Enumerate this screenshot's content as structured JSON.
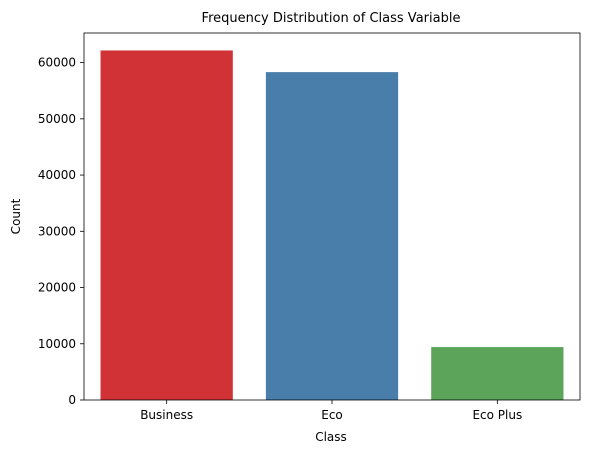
{
  "chart_data": {
    "type": "bar",
    "title": "Frequency Distribution of Class Variable",
    "xlabel": "Class",
    "ylabel": "Count",
    "categories": [
      "Business",
      "Eco",
      "Eco Plus"
    ],
    "values": [
      62160,
      58309,
      9411
    ],
    "colors": [
      "#d03236",
      "#497daa",
      "#5ba459"
    ],
    "ylim": [
      0,
      65266
    ],
    "yticks": [
      0,
      10000,
      20000,
      30000,
      40000,
      50000,
      60000
    ],
    "grid": false,
    "legend": "none"
  }
}
